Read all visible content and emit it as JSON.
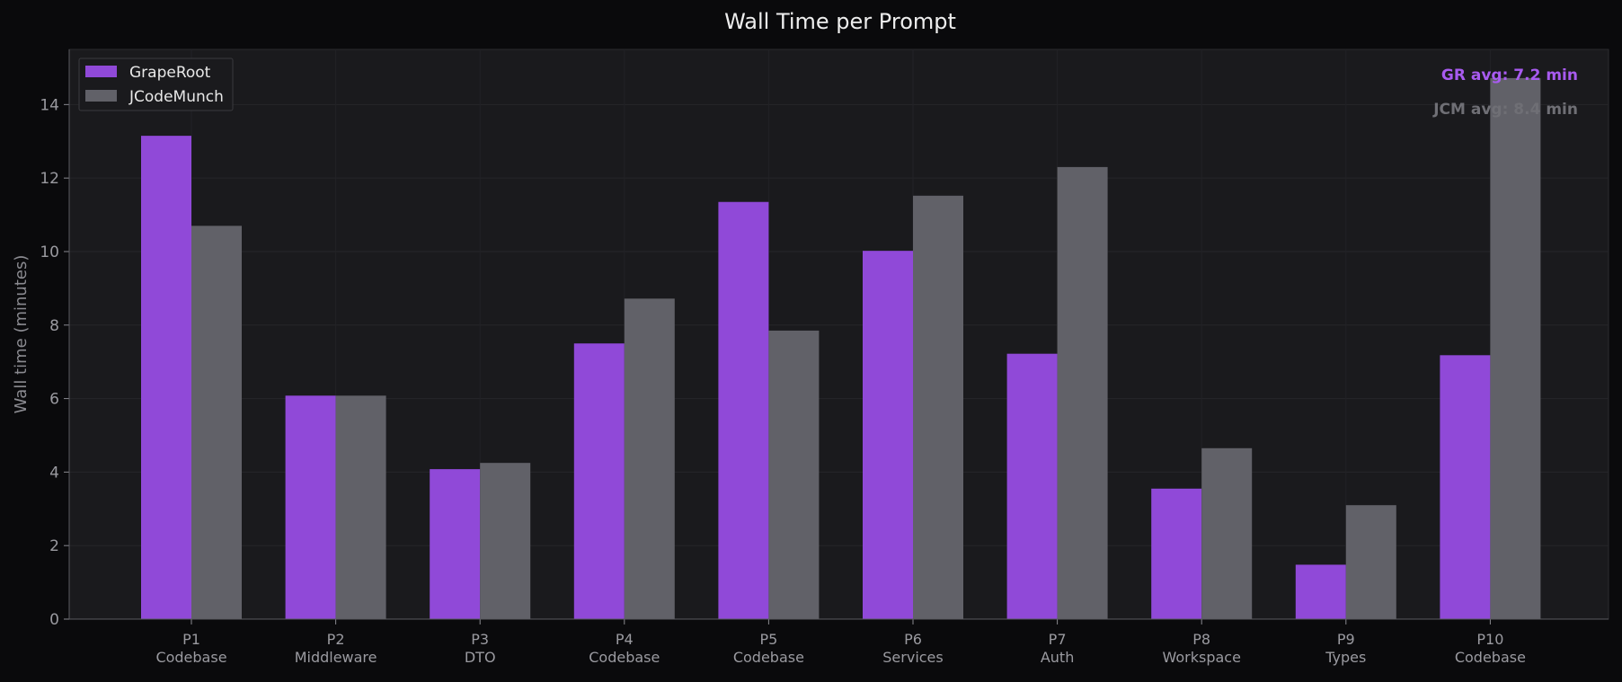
{
  "chart_data": {
    "type": "bar",
    "title": "Wall Time per Prompt",
    "xlabel": "",
    "ylabel": "Wall time (minutes)",
    "ylim": [
      0,
      15.5
    ],
    "yticks": [
      0,
      2,
      4,
      6,
      8,
      10,
      12,
      14
    ],
    "grid": true,
    "legend_position": "top-left",
    "categories": [
      {
        "id": "P1",
        "sub": "Codebase"
      },
      {
        "id": "P2",
        "sub": "Middleware"
      },
      {
        "id": "P3",
        "sub": "DTO"
      },
      {
        "id": "P4",
        "sub": "Codebase"
      },
      {
        "id": "P5",
        "sub": "Codebase"
      },
      {
        "id": "P6",
        "sub": "Services"
      },
      {
        "id": "P7",
        "sub": "Auth"
      },
      {
        "id": "P8",
        "sub": "Workspace"
      },
      {
        "id": "P9",
        "sub": "Types"
      },
      {
        "id": "P10",
        "sub": "Codebase"
      }
    ],
    "series": [
      {
        "name": "GrapeRoot",
        "color": "#9049d8",
        "values": [
          13.15,
          6.08,
          4.08,
          7.5,
          11.35,
          10.02,
          7.22,
          3.55,
          1.48,
          7.18
        ]
      },
      {
        "name": "JCodeMunch",
        "color": "#616168",
        "values": [
          10.7,
          6.08,
          4.25,
          8.72,
          7.85,
          11.52,
          12.3,
          4.65,
          3.1,
          14.72
        ]
      }
    ],
    "annotations": [
      {
        "key": "gr_avg",
        "text": "GR avg: 7.2 min",
        "color": "#a85bf0"
      },
      {
        "key": "jcm_avg",
        "text": "JCM avg: 8.4 min",
        "color": "#6f6f75"
      }
    ]
  }
}
